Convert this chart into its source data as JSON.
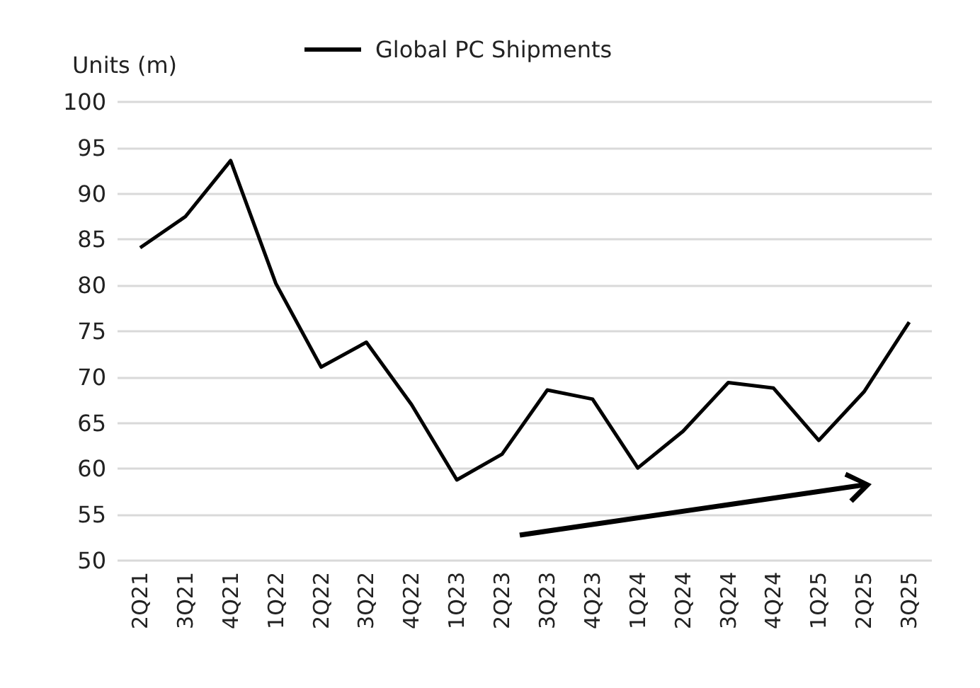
{
  "chart_data": {
    "type": "line",
    "ylabel": "Units (m)",
    "categories": [
      "2Q21",
      "3Q21",
      "4Q21",
      "1Q22",
      "2Q22",
      "3Q22",
      "4Q22",
      "1Q23",
      "2Q23",
      "3Q23",
      "4Q23",
      "1Q24",
      "2Q24",
      "3Q24",
      "4Q24",
      "1Q25",
      "2Q25",
      "3Q25"
    ],
    "series": [
      {
        "name": "Global PC Shipments",
        "color": "#000000",
        "values": [
          84.1,
          87.5,
          93.6,
          80.2,
          71.1,
          73.8,
          67,
          58.8,
          61.6,
          68.6,
          67.6,
          60.1,
          64.1,
          69.4,
          68.8,
          63.1,
          68.4,
          76
        ]
      }
    ],
    "ylim": [
      50,
      100
    ],
    "yticks": [
      50,
      55,
      60,
      65,
      70,
      75,
      80,
      85,
      90,
      95,
      100
    ],
    "grid": "y",
    "legend": "top",
    "marker": "none",
    "line_style": "solid"
  }
}
